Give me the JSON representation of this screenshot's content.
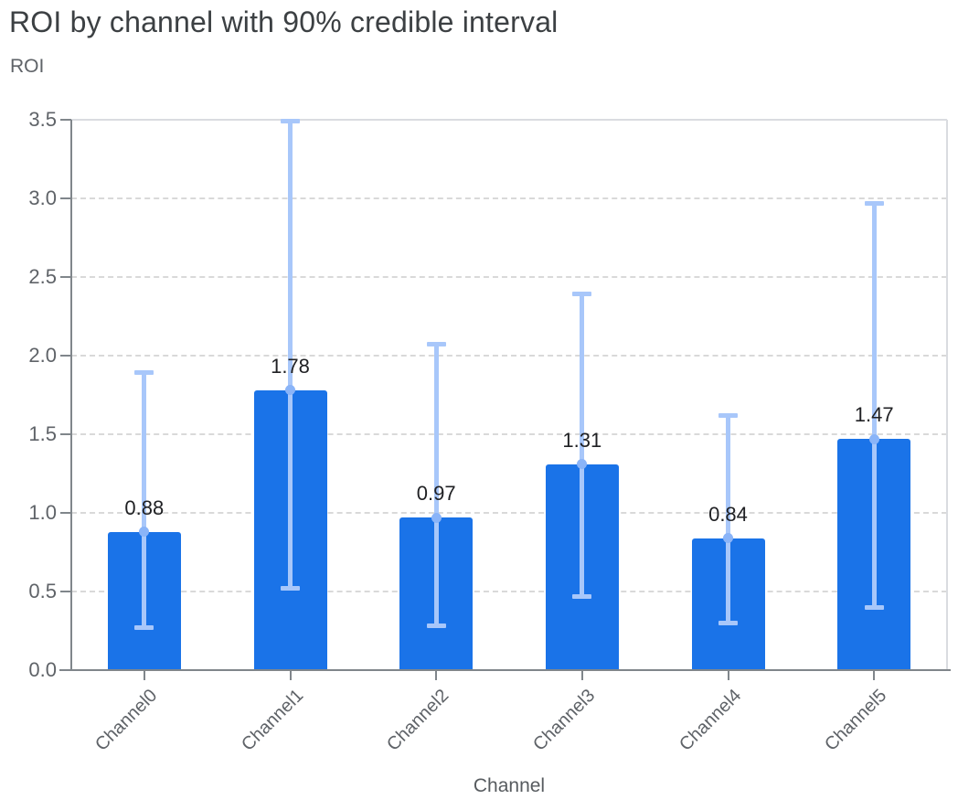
{
  "header": {
    "title": "ROI by channel with 90% credible interval"
  },
  "chart_data": {
    "type": "bar",
    "title": "ROI by channel with 90% credible interval",
    "xlabel": "Channel",
    "ylabel": "ROI",
    "categories": [
      "Channel0",
      "Channel1",
      "Channel2",
      "Channel3",
      "Channel4",
      "Channel5"
    ],
    "values": [
      0.88,
      1.78,
      0.97,
      1.31,
      0.84,
      1.47
    ],
    "value_labels": [
      "0.88",
      "1.78",
      "0.97",
      "1.31",
      "0.84",
      "1.47"
    ],
    "error_bars": {
      "label": "90% credible interval",
      "lower": [
        0.27,
        0.52,
        0.28,
        0.47,
        0.3,
        0.4
      ],
      "upper": [
        1.89,
        3.49,
        2.07,
        2.39,
        1.62,
        2.97
      ]
    },
    "ylim": [
      0,
      3.5
    ],
    "yticks": [
      "0.0",
      "0.5",
      "1.0",
      "1.5",
      "2.0",
      "2.5",
      "3.0",
      "3.5"
    ],
    "grid": "horizontal-dashed",
    "legend": "none",
    "colors": {
      "bar": "#1a73e8",
      "error_bar": "#a8c7fa",
      "mean_dot": "#8ab4f8",
      "axis_line": "#80868b",
      "plot_border": "#dadce0",
      "gridline": "#d9d9d9",
      "title_text": "#3c4043",
      "axis_text": "#5f6368",
      "value_text": "#202124"
    }
  }
}
